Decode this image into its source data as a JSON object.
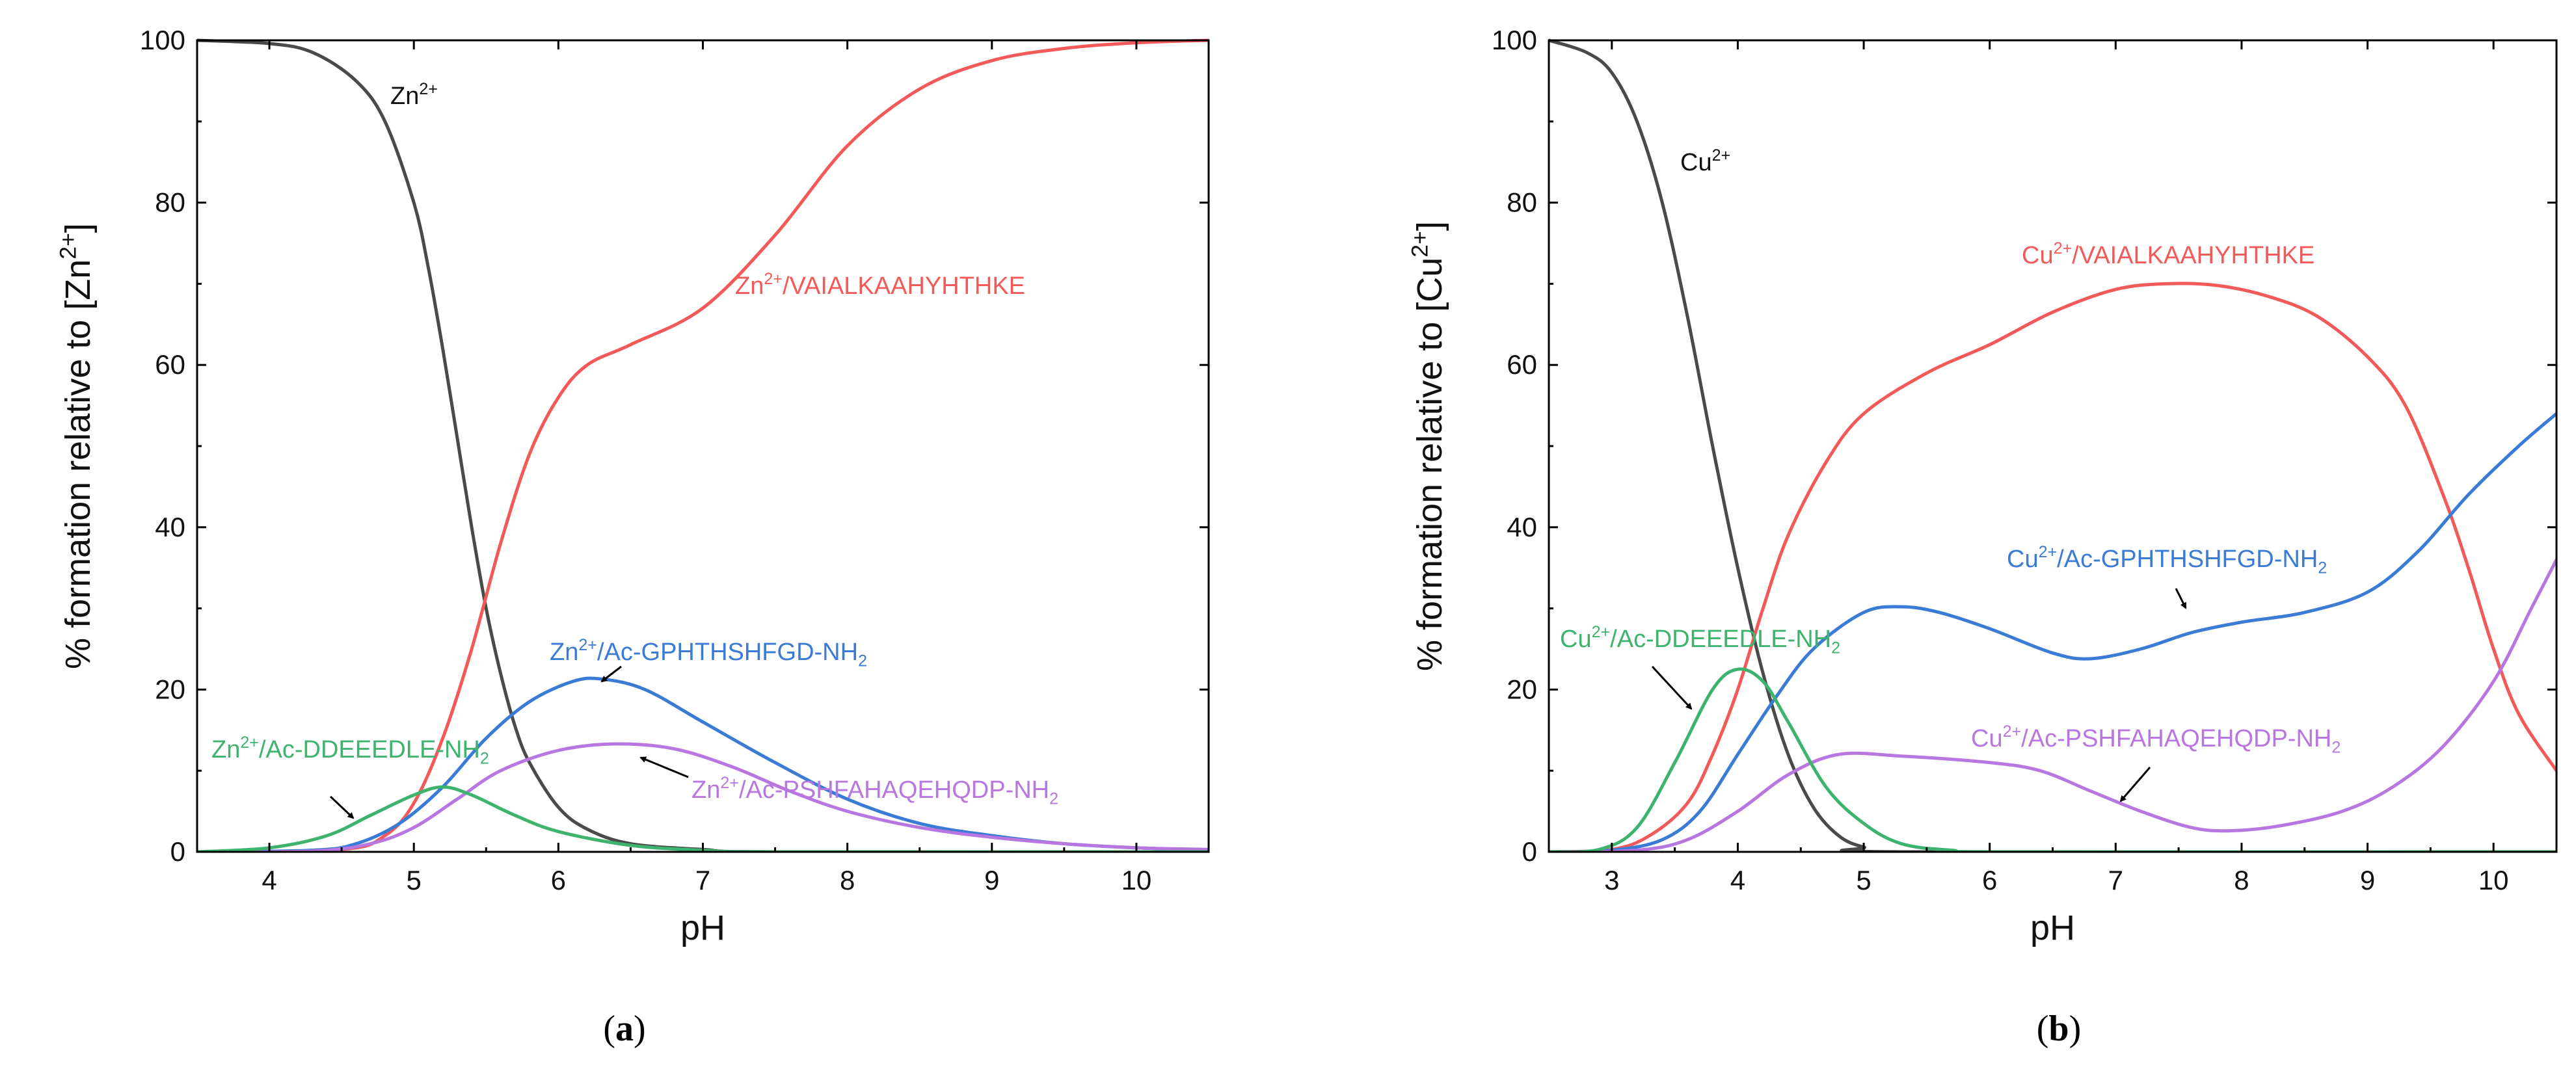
{
  "chart_data": [
    {
      "type": "line",
      "panel_label": "(a)",
      "panel_letter": "a",
      "xlabel": "pH",
      "ylabel": "% formation relative to [Zn2+]",
      "ylabel_parts": {
        "pre": "% formation relative to [Zn",
        "sup": "2+",
        "post": "]"
      },
      "xlim": [
        3.5,
        10.5
      ],
      "ylim": [
        0,
        100
      ],
      "xticks": [
        4,
        5,
        6,
        7,
        8,
        9,
        10
      ],
      "yticks": [
        0,
        20,
        40,
        60,
        80,
        100
      ],
      "series": [
        {
          "name": "Zn2+",
          "color": "#4a4a4a",
          "points": [
            [
              3.5,
              100
            ],
            [
              4.0,
              99.6
            ],
            [
              4.3,
              98.5
            ],
            [
              4.6,
              95
            ],
            [
              4.8,
              90
            ],
            [
              5.0,
              80
            ],
            [
              5.1,
              72
            ],
            [
              5.2,
              62
            ],
            [
              5.3,
              51
            ],
            [
              5.4,
              40
            ],
            [
              5.5,
              30
            ],
            [
              5.6,
              22
            ],
            [
              5.7,
              15.5
            ],
            [
              5.8,
              11
            ],
            [
              6.0,
              5.5
            ],
            [
              6.2,
              2.8
            ],
            [
              6.5,
              1
            ],
            [
              7.0,
              0.3
            ],
            [
              7.5,
              0
            ],
            [
              10.5,
              0
            ]
          ]
        },
        {
          "name": "Zn2+/VAIALKAAHYHTHKE",
          "color": "#f25a5a",
          "points": [
            [
              3.5,
              0
            ],
            [
              4.5,
              0.3
            ],
            [
              4.8,
              2
            ],
            [
              5.0,
              6
            ],
            [
              5.2,
              14
            ],
            [
              5.4,
              25
            ],
            [
              5.6,
              38
            ],
            [
              5.8,
              49
            ],
            [
              6.0,
              56
            ],
            [
              6.2,
              60
            ],
            [
              6.5,
              62.5
            ],
            [
              7.0,
              67
            ],
            [
              7.5,
              76
            ],
            [
              8.0,
              87
            ],
            [
              8.5,
              94
            ],
            [
              9.0,
              97.5
            ],
            [
              9.5,
              99
            ],
            [
              10.0,
              99.7
            ],
            [
              10.5,
              100
            ]
          ]
        },
        {
          "name": "Zn2+/Ac-GPHTHSHFGD-NH2",
          "color": "#3a7bd5",
          "points": [
            [
              3.5,
              0
            ],
            [
              4.3,
              0.2
            ],
            [
              4.6,
              1
            ],
            [
              4.9,
              3.5
            ],
            [
              5.2,
              8
            ],
            [
              5.5,
              14
            ],
            [
              5.8,
              18.5
            ],
            [
              6.1,
              21
            ],
            [
              6.3,
              21.3
            ],
            [
              6.6,
              20
            ],
            [
              7.0,
              16
            ],
            [
              7.5,
              11
            ],
            [
              8.0,
              6.5
            ],
            [
              8.5,
              3.5
            ],
            [
              9.0,
              2
            ],
            [
              9.5,
              1
            ],
            [
              10.0,
              0.5
            ],
            [
              10.5,
              0.2
            ]
          ]
        },
        {
          "name": "Zn2+/Ac-PSHFAHAQEHQDP-NH2",
          "color": "#b776e0",
          "points": [
            [
              3.5,
              0
            ],
            [
              4.3,
              0.1
            ],
            [
              4.7,
              1
            ],
            [
              5.0,
              3
            ],
            [
              5.3,
              6.5
            ],
            [
              5.6,
              10
            ],
            [
              6.0,
              12.5
            ],
            [
              6.4,
              13.3
            ],
            [
              6.8,
              12.7
            ],
            [
              7.2,
              10.5
            ],
            [
              7.6,
              7.5
            ],
            [
              8.0,
              5
            ],
            [
              8.5,
              3
            ],
            [
              9.0,
              1.8
            ],
            [
              9.5,
              1
            ],
            [
              10.0,
              0.5
            ],
            [
              10.5,
              0.3
            ]
          ]
        },
        {
          "name": "Zn2+/Ac-DDEEEDLE-NH2",
          "color": "#3db36e",
          "points": [
            [
              3.5,
              0
            ],
            [
              4.0,
              0.5
            ],
            [
              4.4,
              2
            ],
            [
              4.7,
              4.5
            ],
            [
              5.0,
              7
            ],
            [
              5.2,
              8
            ],
            [
              5.4,
              7
            ],
            [
              5.7,
              4.5
            ],
            [
              6.0,
              2.5
            ],
            [
              6.5,
              0.8
            ],
            [
              7.0,
              0.2
            ],
            [
              7.5,
              0
            ],
            [
              10.5,
              0
            ]
          ]
        }
      ],
      "annotations": [
        {
          "pre": "Zn",
          "sup": "2+",
          "post": "",
          "sub": "",
          "color": "#111111"
        },
        {
          "pre": "Zn",
          "sup": "2+",
          "post": "/VAIALKAAHYHTHKE",
          "sub": "",
          "color": "#f25a5a"
        },
        {
          "pre": "Zn",
          "sup": "2+",
          "post": "/Ac-GPHTHSHFGD-NH",
          "sub": "2",
          "color": "#3a7bd5"
        },
        {
          "pre": "Zn",
          "sup": "2+",
          "post": "/Ac-DDEEEDLE-NH",
          "sub": "2",
          "color": "#3db36e"
        },
        {
          "pre": "Zn",
          "sup": "2+",
          "post": "/Ac-PSHFAHAQEHQDP-NH",
          "sub": "2",
          "color": "#b776e0"
        }
      ]
    },
    {
      "type": "line",
      "panel_label": "(b)",
      "panel_letter": "b",
      "xlabel": "pH",
      "ylabel": "% formation relative to [Cu2+]",
      "ylabel_parts": {
        "pre": "% formation relative to [Cu",
        "sup": "2+",
        "post": "]"
      },
      "xlim": [
        2.5,
        10.5
      ],
      "ylim": [
        0,
        100
      ],
      "xticks": [
        3,
        4,
        5,
        6,
        7,
        8,
        9,
        10
      ],
      "yticks": [
        0,
        20,
        40,
        60,
        80,
        100
      ],
      "series": [
        {
          "name": "Cu2+",
          "color": "#4a4a4a",
          "points": [
            [
              2.5,
              100
            ],
            [
              2.8,
              98.5
            ],
            [
              3.0,
              96
            ],
            [
              3.2,
              90
            ],
            [
              3.4,
              80
            ],
            [
              3.6,
              66
            ],
            [
              3.8,
              50
            ],
            [
              4.0,
              35
            ],
            [
              4.2,
              22
            ],
            [
              4.4,
              12
            ],
            [
              4.6,
              5.5
            ],
            [
              4.8,
              2
            ],
            [
              5.0,
              0.6
            ],
            [
              5.3,
              0
            ],
            [
              10.5,
              0
            ]
          ]
        },
        {
          "name": "Cu2+/VAIALKAAHYHTHKE",
          "color": "#f25a5a",
          "points": [
            [
              2.5,
              0
            ],
            [
              3.0,
              0.3
            ],
            [
              3.3,
              2
            ],
            [
              3.6,
              6
            ],
            [
              3.8,
              12
            ],
            [
              4.0,
              20
            ],
            [
              4.2,
              30
            ],
            [
              4.4,
              39
            ],
            [
              4.7,
              48
            ],
            [
              5.0,
              54
            ],
            [
              5.5,
              59
            ],
            [
              6.0,
              62.5
            ],
            [
              6.5,
              66.5
            ],
            [
              7.0,
              69.3
            ],
            [
              7.4,
              70
            ],
            [
              7.8,
              69.8
            ],
            [
              8.2,
              68.5
            ],
            [
              8.6,
              66
            ],
            [
              9.0,
              61
            ],
            [
              9.3,
              55
            ],
            [
              9.6,
              44
            ],
            [
              9.8,
              35
            ],
            [
              10.0,
              25
            ],
            [
              10.2,
              17
            ],
            [
              10.5,
              10
            ]
          ]
        },
        {
          "name": "Cu2+/Ac-GPHTHSHFGD-NH2",
          "color": "#3a7bd5",
          "points": [
            [
              2.5,
              0
            ],
            [
              3.0,
              0.2
            ],
            [
              3.4,
              1.5
            ],
            [
              3.7,
              5
            ],
            [
              4.0,
              12
            ],
            [
              4.3,
              19
            ],
            [
              4.6,
              25
            ],
            [
              5.0,
              29.5
            ],
            [
              5.3,
              30.2
            ],
            [
              5.6,
              29.5
            ],
            [
              6.0,
              27.5
            ],
            [
              6.5,
              24.5
            ],
            [
              6.8,
              23.8
            ],
            [
              7.2,
              25
            ],
            [
              7.6,
              27
            ],
            [
              8.0,
              28.3
            ],
            [
              8.5,
              29.5
            ],
            [
              9.0,
              32
            ],
            [
              9.4,
              37
            ],
            [
              9.8,
              44
            ],
            [
              10.2,
              50
            ],
            [
              10.5,
              54
            ]
          ]
        },
        {
          "name": "Cu2+/Ac-PSHFAHAQEHQDP-NH2",
          "color": "#b776e0",
          "points": [
            [
              2.5,
              0
            ],
            [
              3.2,
              0.2
            ],
            [
              3.6,
              1.5
            ],
            [
              4.0,
              5
            ],
            [
              4.4,
              9.5
            ],
            [
              4.8,
              12
            ],
            [
              5.3,
              11.8
            ],
            [
              6.0,
              11
            ],
            [
              6.4,
              10
            ],
            [
              6.8,
              7.5
            ],
            [
              7.2,
              5
            ],
            [
              7.6,
              3
            ],
            [
              7.9,
              2.6
            ],
            [
              8.3,
              3.2
            ],
            [
              8.8,
              5
            ],
            [
              9.2,
              8
            ],
            [
              9.6,
              13
            ],
            [
              10.0,
              21
            ],
            [
              10.3,
              30
            ],
            [
              10.5,
              36
            ]
          ]
        },
        {
          "name": "Cu2+/Ac-DDEEEDLE-NH2",
          "color": "#3db36e",
          "points": [
            [
              2.5,
              0
            ],
            [
              2.9,
              0.3
            ],
            [
              3.2,
              3
            ],
            [
              3.5,
              11
            ],
            [
              3.8,
              20
            ],
            [
              4.0,
              22.5
            ],
            [
              4.2,
              21
            ],
            [
              4.4,
              16
            ],
            [
              4.7,
              8
            ],
            [
              5.0,
              3.5
            ],
            [
              5.3,
              1
            ],
            [
              5.7,
              0.2
            ],
            [
              6.2,
              0
            ],
            [
              10.5,
              0
            ]
          ]
        }
      ],
      "annotations": [
        {
          "pre": "Cu",
          "sup": "2+",
          "post": "",
          "sub": "",
          "color": "#111111"
        },
        {
          "pre": "Cu",
          "sup": "2+",
          "post": "/VAIALKAAHYHTHKE",
          "sub": "",
          "color": "#f25a5a"
        },
        {
          "pre": "Cu",
          "sup": "2+",
          "post": "/Ac-GPHTHSHFGD-NH",
          "sub": "2",
          "color": "#3a7bd5"
        },
        {
          "pre": "Cu",
          "sup": "2+",
          "post": "/Ac-DDEEEDLE-NH",
          "sub": "2",
          "color": "#3db36e"
        },
        {
          "pre": "Cu",
          "sup": "2+",
          "post": "/Ac-PSHFAHAQEHQDP-NH",
          "sub": "2",
          "color": "#b776e0"
        }
      ]
    }
  ]
}
